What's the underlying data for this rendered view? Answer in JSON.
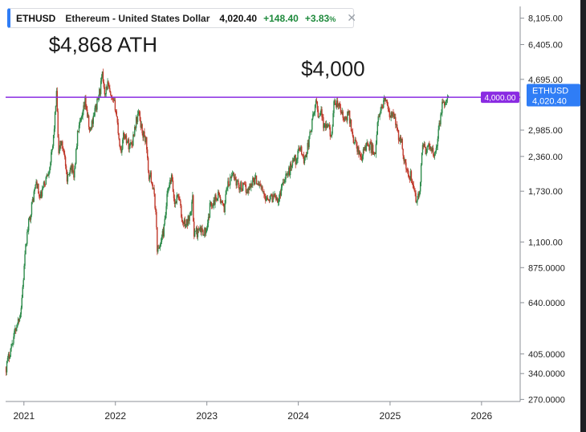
{
  "header": {
    "symbol": "ETHUSD",
    "name": "Ethereum - United States Dollar",
    "price": "4,020.40",
    "change": "+148.40",
    "change_pct": "+3.83",
    "pct_sign": "%",
    "close_glyph": "✕"
  },
  "colors": {
    "up": "#2e8b4b",
    "down": "#c0392b",
    "level_line": "#8a2be2",
    "header_accent": "#2f7df6",
    "price_badge": "#2f7df6"
  },
  "chart_data": {
    "type": "line",
    "title": "",
    "xlabel": "",
    "ylabel": "",
    "y_scale": "log",
    "ylim": [
      265,
      9000
    ],
    "xlim": [
      "2020-10-20",
      "2026-06-01"
    ],
    "x_ticks": [
      {
        "date": "2021-01-01",
        "label": "2021"
      },
      {
        "date": "2022-01-01",
        "label": "2022"
      },
      {
        "date": "2023-01-01",
        "label": "2023"
      },
      {
        "date": "2024-01-01",
        "label": "2024"
      },
      {
        "date": "2025-01-01",
        "label": "2025"
      },
      {
        "date": "2026-01-01",
        "label": "2026"
      }
    ],
    "y_ticks": [
      {
        "value": 8105,
        "label": "8,105.00"
      },
      {
        "value": 6405,
        "label": "6,405.00"
      },
      {
        "value": 4695,
        "label": "4,695.00"
      },
      {
        "value": 2985,
        "label": "2,985.00"
      },
      {
        "value": 2360,
        "label": "2,360.00"
      },
      {
        "value": 1730,
        "label": "1,730.00"
      },
      {
        "value": 1100,
        "label": "1,100.00"
      },
      {
        "value": 875,
        "label": "875.0000"
      },
      {
        "value": 640,
        "label": "640.0000"
      },
      {
        "value": 405,
        "label": "405.0000"
      },
      {
        "value": 340,
        "label": "340.0000"
      },
      {
        "value": 270,
        "label": "270.0000"
      }
    ],
    "series": [
      {
        "x": [
          "2020-10-22",
          "2020-11-20",
          "2020-12-20",
          "2021-01-10",
          "2021-01-20",
          "2021-02-05",
          "2021-02-20",
          "2021-03-05",
          "2021-03-20",
          "2021-04-10",
          "2021-04-25",
          "2021-05-05",
          "2021-05-12",
          "2021-05-19",
          "2021-05-25",
          "2021-06-10",
          "2021-06-22",
          "2021-07-05",
          "2021-07-20",
          "2021-08-05",
          "2021-08-20",
          "2021-09-03",
          "2021-09-21",
          "2021-10-05",
          "2021-10-20",
          "2021-11-01",
          "2021-11-10",
          "2021-11-20",
          "2021-12-01",
          "2021-12-15",
          "2022-01-01",
          "2022-01-10",
          "2022-01-22",
          "2022-02-05",
          "2022-02-24",
          "2022-03-10",
          "2022-03-20",
          "2022-04-03",
          "2022-04-20",
          "2022-05-05",
          "2022-05-12",
          "2022-05-25",
          "2022-06-10",
          "2022-06-18",
          "2022-07-01",
          "2022-07-15",
          "2022-07-28",
          "2022-08-13",
          "2022-08-25",
          "2022-09-10",
          "2022-09-25",
          "2022-10-15",
          "2022-11-05",
          "2022-11-10",
          "2022-11-25",
          "2022-12-15",
          "2023-01-01",
          "2023-01-15",
          "2023-02-01",
          "2023-02-15",
          "2023-03-10",
          "2023-03-20",
          "2023-04-01",
          "2023-04-15",
          "2023-05-01",
          "2023-05-20",
          "2023-06-15",
          "2023-07-01",
          "2023-07-15",
          "2023-08-01",
          "2023-08-17",
          "2023-09-01",
          "2023-09-15",
          "2023-10-01",
          "2023-10-15",
          "2023-10-25",
          "2023-11-10",
          "2023-11-25",
          "2023-12-10",
          "2023-12-25",
          "2024-01-10",
          "2024-01-23",
          "2024-02-10",
          "2024-02-25",
          "2024-03-05",
          "2024-03-12",
          "2024-03-20",
          "2024-04-01",
          "2024-04-12",
          "2024-04-20",
          "2024-05-01",
          "2024-05-15",
          "2024-05-22",
          "2024-06-05",
          "2024-06-20",
          "2024-07-05",
          "2024-07-20",
          "2024-08-05",
          "2024-08-20",
          "2024-09-06",
          "2024-09-25",
          "2024-10-10",
          "2024-10-25",
          "2024-11-05",
          "2024-11-12",
          "2024-11-25",
          "2024-12-05",
          "2024-12-16",
          "2024-12-25",
          "2025-01-06",
          "2025-01-20",
          "2025-02-03",
          "2025-02-15",
          "2025-03-01",
          "2025-03-10",
          "2025-03-25",
          "2025-04-09",
          "2025-04-20",
          "2025-05-01",
          "2025-05-10",
          "2025-05-25",
          "2025-06-10",
          "2025-06-22",
          "2025-07-01",
          "2025-07-15",
          "2025-07-28",
          "2025-08-10",
          "2025-08-22"
        ],
        "y": [
          360,
          470,
          600,
          1100,
          1300,
          1600,
          1900,
          1600,
          1800,
          2100,
          2500,
          3400,
          4200,
          2300,
          2700,
          2500,
          1850,
          2200,
          2000,
          3000,
          3250,
          3900,
          2900,
          3400,
          3800,
          4300,
          4850,
          4200,
          4500,
          3900,
          3700,
          3100,
          2450,
          2900,
          2600,
          2700,
          3100,
          3500,
          2900,
          2700,
          2000,
          1950,
          1500,
          1000,
          1100,
          1250,
          1700,
          1950,
          1550,
          1700,
          1300,
          1300,
          1600,
          1200,
          1200,
          1220,
          1200,
          1550,
          1600,
          1700,
          1450,
          1800,
          1850,
          2050,
          1850,
          1800,
          1750,
          1900,
          1920,
          1850,
          1650,
          1650,
          1620,
          1700,
          1580,
          1800,
          2000,
          2050,
          2300,
          2300,
          2600,
          2250,
          2650,
          3200,
          3500,
          4000,
          3400,
          3600,
          3000,
          3100,
          3000,
          2900,
          3700,
          3800,
          3500,
          3200,
          3500,
          2800,
          2600,
          2300,
          2600,
          2600,
          2500,
          2450,
          3200,
          3500,
          3900,
          4000,
          3400,
          3400,
          3300,
          2800,
          2700,
          2250,
          2000,
          2000,
          1650,
          1600,
          1800,
          2550,
          2500,
          2600,
          2400,
          2500,
          3000,
          3800,
          3700,
          4020
        ]
      }
    ],
    "annotations": [
      {
        "text": "$4,868 ATH",
        "x": "2021-04-10",
        "y": 6000
      },
      {
        "text": "$4,000",
        "x": "2024-01-12",
        "y": 4850
      }
    ],
    "reference_line": {
      "value": 4000,
      "label": "4,000.00"
    },
    "last_price_badge": {
      "symbol": "ETHUSD",
      "value": "4,020.40"
    },
    "grid": false,
    "legend": "none"
  }
}
